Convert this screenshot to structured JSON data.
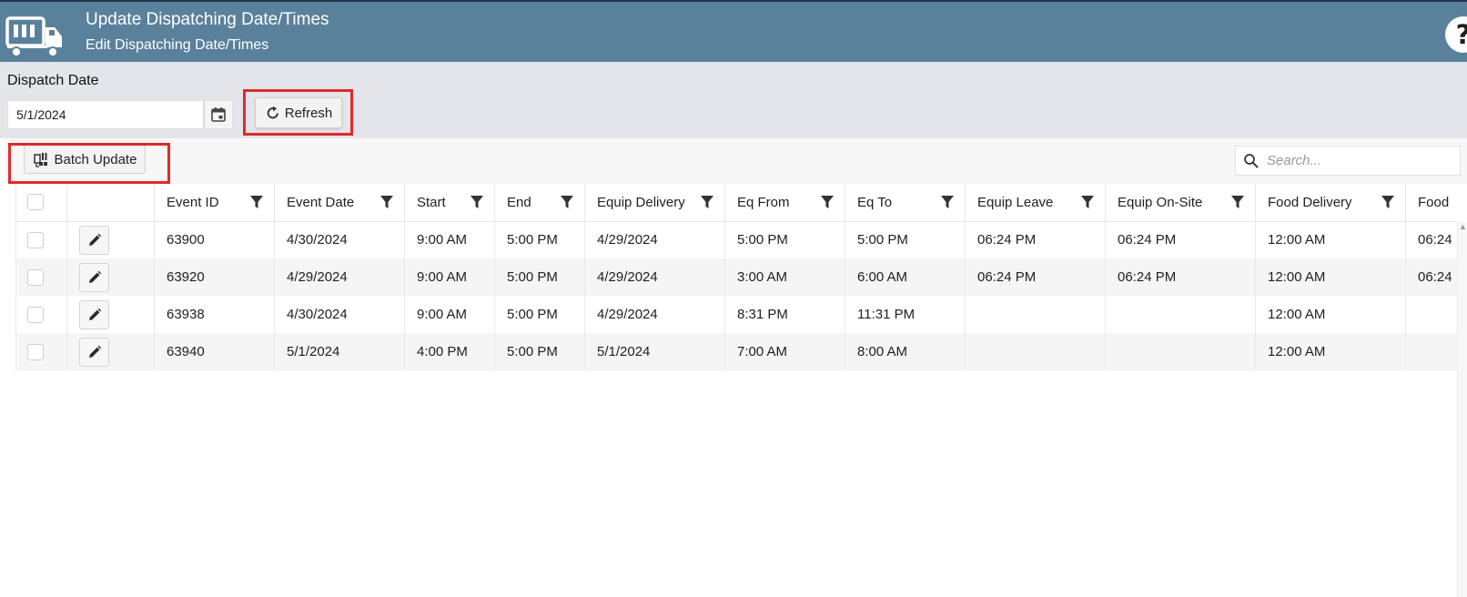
{
  "header": {
    "title": "Update Dispatching Date/Times",
    "subtitle": "Edit Dispatching Date/Times",
    "logo_icon": "truck-icon",
    "help_label": "?"
  },
  "filter": {
    "dispatch_date_label": "Dispatch Date",
    "dispatch_date_value": "5/1/2024",
    "refresh_label": "Refresh"
  },
  "toolbar": {
    "batch_update_label": "Batch Update",
    "search_placeholder": "Search..."
  },
  "grid": {
    "columns": [
      "Event ID",
      "Event Date",
      "Start",
      "End",
      "Equip Delivery",
      "Eq From",
      "Eq To",
      "Equip Leave",
      "Equip On-Site",
      "Food Delivery",
      "Food"
    ],
    "rows": [
      [
        "63900",
        "4/30/2024",
        "9:00 AM",
        "5:00 PM",
        "4/29/2024",
        "5:00 PM",
        "5:00 PM",
        "06:24 PM",
        "06:24 PM",
        "12:00 AM",
        "06:24"
      ],
      [
        "63920",
        "4/29/2024",
        "9:00 AM",
        "5:00 PM",
        "4/29/2024",
        "3:00 AM",
        "6:00 AM",
        "06:24 PM",
        "06:24 PM",
        "12:00 AM",
        "06:24"
      ],
      [
        "63938",
        "4/30/2024",
        "9:00 AM",
        "5:00 PM",
        "4/29/2024",
        "8:31 PM",
        "11:31 PM",
        "",
        "",
        "12:00 AM",
        ""
      ],
      [
        "63940",
        "5/1/2024",
        "4:00 PM",
        "5:00 PM",
        "5/1/2024",
        "7:00 AM",
        "8:00 AM",
        "",
        "",
        "12:00 AM",
        ""
      ]
    ]
  },
  "colors": {
    "header_bg": "#5a819c",
    "highlight": "#e02a2a",
    "filter_bg": "#e3e5ea"
  }
}
